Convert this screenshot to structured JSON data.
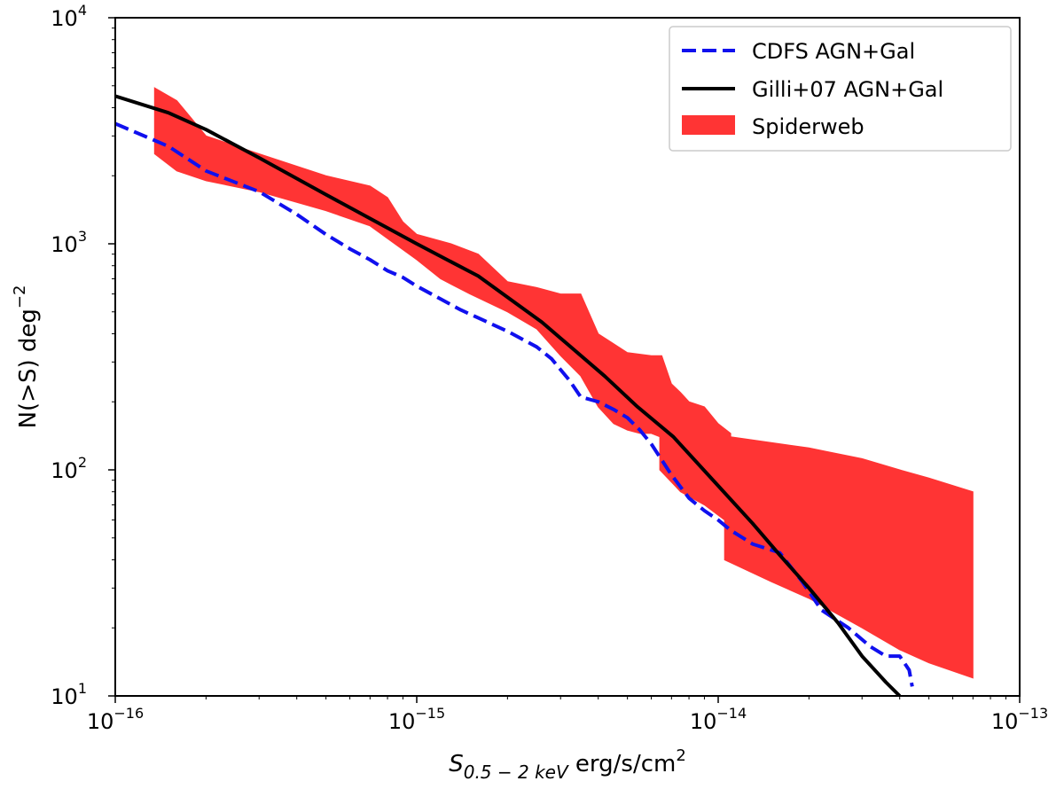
{
  "chart_data": {
    "type": "line",
    "xscale": "log",
    "yscale": "log",
    "xlim": [
      1e-16,
      1e-13
    ],
    "ylim": [
      10,
      10000
    ],
    "grid": false,
    "legend_position": "top-right",
    "x_ticks": [
      {
        "base": "10",
        "exp": "−16",
        "value": 1e-16
      },
      {
        "base": "10",
        "exp": "−15",
        "value": 1e-15
      },
      {
        "base": "10",
        "exp": "−14",
        "value": 1e-14
      },
      {
        "base": "10",
        "exp": "−13",
        "value": 1e-13
      }
    ],
    "y_ticks": [
      {
        "base": "10",
        "exp": "1",
        "value": 10
      },
      {
        "base": "10",
        "exp": "2",
        "value": 100
      },
      {
        "base": "10",
        "exp": "3",
        "value": 1000
      },
      {
        "base": "10",
        "exp": "4",
        "value": 10000
      }
    ],
    "xlabel": {
      "symbol": "S",
      "subscript": "0.5 − 2 keV",
      "units": " erg/s/cm",
      "power": "2"
    },
    "ylabel": {
      "main": "N(>S) deg",
      "power": "−2"
    },
    "series": [
      {
        "name": "CDFS AGN+Gal",
        "style": "dashed",
        "color": "#1010ee",
        "x": [
          1e-16,
          1.5e-16,
          2e-16,
          3e-16,
          4e-16,
          5e-16,
          6e-16,
          7e-16,
          8e-16,
          9e-16,
          1e-15,
          1.2e-15,
          1.4e-15,
          1.6e-15,
          2e-15,
          2.5e-15,
          2.8e-15,
          3.2e-15,
          3.5e-15,
          4e-15,
          4.5e-15,
          5e-15,
          5.5e-15,
          6e-15,
          7e-15,
          8e-15,
          9e-15,
          1e-14,
          1.1e-14,
          1.3e-14,
          1.6e-14,
          1.9e-14,
          2.2e-14,
          2.7e-14,
          3.2e-14,
          3.6e-14,
          4e-14,
          4.3e-14,
          4.4e-14
        ],
        "y": [
          3400,
          2700,
          2100,
          1700,
          1350,
          1100,
          950,
          850,
          760,
          710,
          650,
          570,
          510,
          470,
          410,
          350,
          310,
          250,
          210,
          200,
          185,
          170,
          150,
          130,
          95,
          75,
          66,
          60,
          54,
          47,
          43,
          32,
          24,
          20,
          16.5,
          15,
          15,
          13,
          11
        ]
      },
      {
        "name": "Gilli+07 AGN+Gal",
        "style": "solid",
        "color": "#000000",
        "x": [
          1e-16,
          1.5e-16,
          2e-16,
          3e-16,
          5e-16,
          1e-15,
          1.6e-15,
          2.6e-15,
          4.2e-15,
          5.4e-15,
          7.1e-15,
          1e-14,
          1.3e-14,
          1.6e-14,
          2e-14,
          2.5e-14,
          3e-14,
          3.6e-14,
          4e-14
        ],
        "y": [
          4500,
          3800,
          3200,
          2400,
          1650,
          1000,
          720,
          450,
          260,
          190,
          140,
          85,
          58,
          42,
          30,
          21,
          15,
          11.5,
          10
        ]
      }
    ],
    "band": {
      "name": "Spiderweb",
      "color": "#ff3434",
      "upper": {
        "x": [
          1.35e-16,
          1.6e-16,
          2e-16,
          3e-16,
          5e-16,
          7e-16,
          8e-16,
          9e-16,
          1e-15,
          1.3e-15,
          1.6e-15,
          2e-15,
          2.5e-15,
          3e-15,
          3.5e-15,
          4e-15,
          5e-15,
          6e-15,
          6.5e-15,
          7e-15,
          7.5e-15,
          8e-15,
          9e-15,
          1e-14,
          1.1e-14,
          1.1e-14,
          2e-14,
          3e-14,
          4e-14,
          5e-14,
          7e-14
        ],
        "y": [
          4900,
          4300,
          3000,
          2500,
          2000,
          1800,
          1600,
          1250,
          1100,
          1000,
          900,
          680,
          640,
          600,
          600,
          400,
          330,
          320,
          320,
          240,
          220,
          200,
          190,
          160,
          145,
          140,
          125,
          112,
          100,
          92,
          80
        ]
      },
      "lower": {
        "x": [
          1.35e-16,
          1.6e-16,
          2e-16,
          3e-16,
          5e-16,
          7e-16,
          1e-15,
          1.2e-15,
          1.5e-15,
          2e-15,
          2.5e-15,
          3e-15,
          3.5e-15,
          4e-15,
          4.5e-15,
          5e-15,
          5.5e-15,
          6e-15,
          6.4e-15,
          6.4e-15,
          7.5e-15,
          9e-15,
          1.05e-14,
          1.05e-14,
          1.5e-14,
          2e-14,
          3e-14,
          4e-14,
          5e-14,
          7e-14
        ],
        "y": [
          2500,
          2100,
          1900,
          1700,
          1400,
          1200,
          850,
          700,
          600,
          500,
          420,
          320,
          260,
          190,
          160,
          150,
          145,
          145,
          140,
          100,
          80,
          70,
          60,
          40,
          32,
          27,
          20,
          16,
          14,
          12
        ]
      }
    }
  }
}
